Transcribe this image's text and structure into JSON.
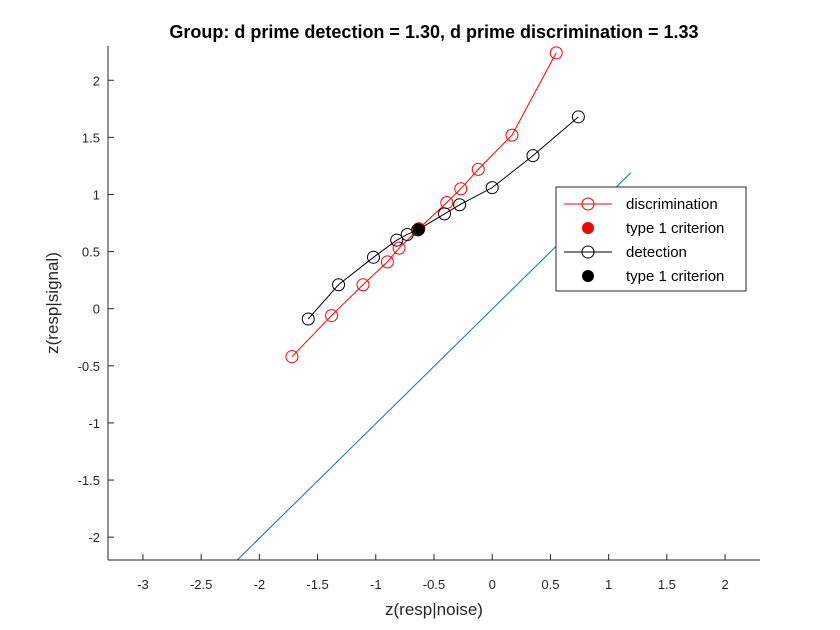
{
  "chart_data": {
    "type": "line",
    "title": "Group: d prime detection = 1.30, d prime discrimination = 1.33",
    "xlabel": "z(resp|noise)",
    "ylabel": "z(resp|signal)",
    "xlim": [
      -3.3,
      2.3
    ],
    "ylim": [
      -2.2,
      2.3
    ],
    "xticks": [
      -3,
      -2.5,
      -2,
      -1.5,
      -1,
      -0.5,
      0,
      0.5,
      1,
      1.5,
      2
    ],
    "yticks": [
      -2,
      -1.5,
      -1,
      -0.5,
      0,
      0.5,
      1,
      1.5,
      2
    ],
    "tick_labels_x": [
      "-3",
      "-2.5",
      "-2",
      "-1.5",
      "-1",
      "-0.5",
      "0",
      "0.5",
      "1",
      "1.5",
      "2"
    ],
    "tick_labels_y": [
      "-2",
      "-1.5",
      "-1",
      "-0.5",
      "0",
      "0.5",
      "1",
      "1.5",
      "2"
    ],
    "grid": false,
    "legend_position": "right",
    "series": [
      {
        "name": "discrimination",
        "color": "#ff0000",
        "marker": "open-circle",
        "x": [
          -1.72,
          -1.38,
          -1.11,
          -0.9,
          -0.8,
          -0.63,
          -0.39,
          -0.27,
          -0.12,
          0.17,
          0.55
        ],
        "y": [
          -0.42,
          -0.06,
          0.21,
          0.41,
          0.53,
          0.7,
          0.93,
          1.05,
          1.22,
          1.52,
          2.24
        ]
      },
      {
        "name": "type 1 criterion",
        "color": "#ff0000",
        "marker": "filled-circle",
        "x": [
          -0.63
        ],
        "y": [
          0.7
        ]
      },
      {
        "name": "detection",
        "color": "#000000",
        "marker": "open-circle",
        "x": [
          -1.58,
          -1.32,
          -1.02,
          -0.82,
          -0.73,
          -0.64,
          -0.41,
          -0.28,
          0.0,
          0.35,
          0.74
        ],
        "y": [
          -0.09,
          0.21,
          0.45,
          0.6,
          0.65,
          0.69,
          0.83,
          0.91,
          1.06,
          1.34,
          1.68
        ]
      },
      {
        "name": "type 1 criterion",
        "color": "#000000",
        "marker": "filled-circle",
        "x": [
          -0.63
        ],
        "y": [
          0.69
        ]
      }
    ],
    "reference_line": {
      "color": "#0072bd",
      "x": [
        -2.19,
        1.19
      ],
      "y": [
        -2.2,
        1.19
      ]
    }
  }
}
